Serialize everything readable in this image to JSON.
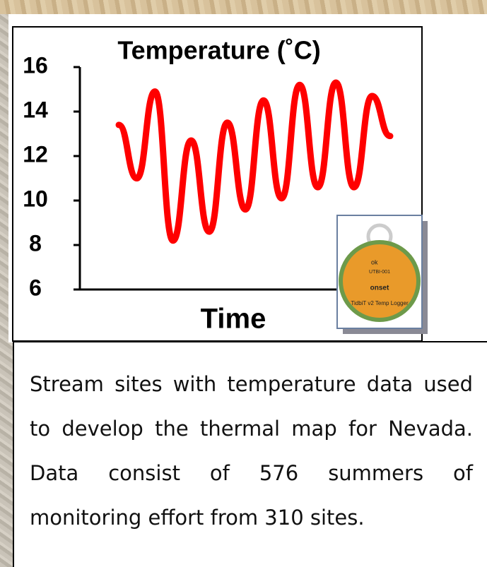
{
  "chart_data": {
    "type": "line",
    "title": "Temperature (˚C)",
    "x_label": "Time",
    "series": [
      {
        "name": null,
        "color": "#ff0000",
        "values": [
          13.4,
          11.0,
          14.9,
          8.2,
          12.7,
          8.6,
          13.5,
          9.6,
          14.5,
          10.1,
          15.2,
          10.6,
          15.3,
          10.6,
          14.7,
          12.9
        ]
      }
    ],
    "ylim": [
      6,
      16
    ],
    "yticks": [
      6,
      8,
      10,
      12,
      14,
      16
    ]
  },
  "inset_labels": [
    "ok",
    "UTBI-001",
    "onset",
    "TidbiT v2 Temp Logger"
  ],
  "caption": "Stream sites with temperature data used to develop the thermal map for Nevada. Data consist of 576 summers of monitoring effort from 310 sites."
}
